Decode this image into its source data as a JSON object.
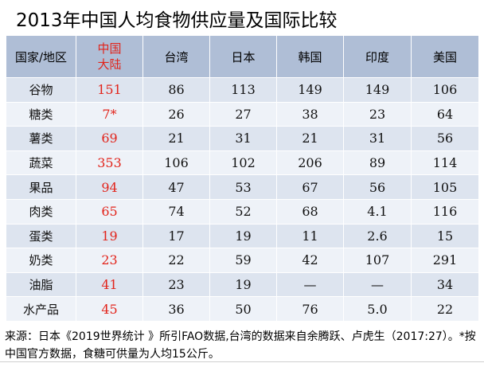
{
  "title": "2013年中国人均食物供应量及国际比较",
  "table": {
    "corner": "国家/地区",
    "columns": [
      "中国\n大陆",
      "台湾",
      "日本",
      "韩国",
      "印度",
      "美国"
    ],
    "highlight_color": "#e2231a",
    "header_bg": "#afbed6",
    "row_bg_odd": "#dde4ef",
    "row_bg_even": "#eef2f8",
    "rows": [
      {
        "label": "谷物",
        "values": [
          "151",
          "86",
          "113",
          "149",
          "149",
          "106"
        ]
      },
      {
        "label": "糖类",
        "values": [
          "7*",
          "26",
          "27",
          "38",
          "23",
          "64"
        ]
      },
      {
        "label": "薯类",
        "values": [
          "69",
          "21",
          "31",
          "21",
          "31",
          "56"
        ]
      },
      {
        "label": "蔬菜",
        "values": [
          "353",
          "106",
          "102",
          "206",
          "89",
          "114"
        ]
      },
      {
        "label": "果品",
        "values": [
          "94",
          "47",
          "53",
          "67",
          "56",
          "105"
        ]
      },
      {
        "label": "肉类",
        "values": [
          "65",
          "74",
          "52",
          "68",
          "4.1",
          "116"
        ]
      },
      {
        "label": "蛋类",
        "values": [
          "19",
          "17",
          "19",
          "11",
          "2.6",
          "15"
        ]
      },
      {
        "label": "奶类",
        "values": [
          "23",
          "22",
          "59",
          "42",
          "107",
          "291"
        ]
      },
      {
        "label": "油脂",
        "values": [
          "41",
          "23",
          "19",
          "—",
          "—",
          "34"
        ]
      },
      {
        "label": "水产品",
        "values": [
          "45",
          "36",
          "50",
          "76",
          "5.0",
          "22"
        ]
      }
    ]
  },
  "source": "来源：日本《2019世界统计 》所引FAO数据,台湾的数据来自余腾跃、卢虎生（2017:27）。*按中国官方数据，食糖可供量为人均15公斤。"
}
